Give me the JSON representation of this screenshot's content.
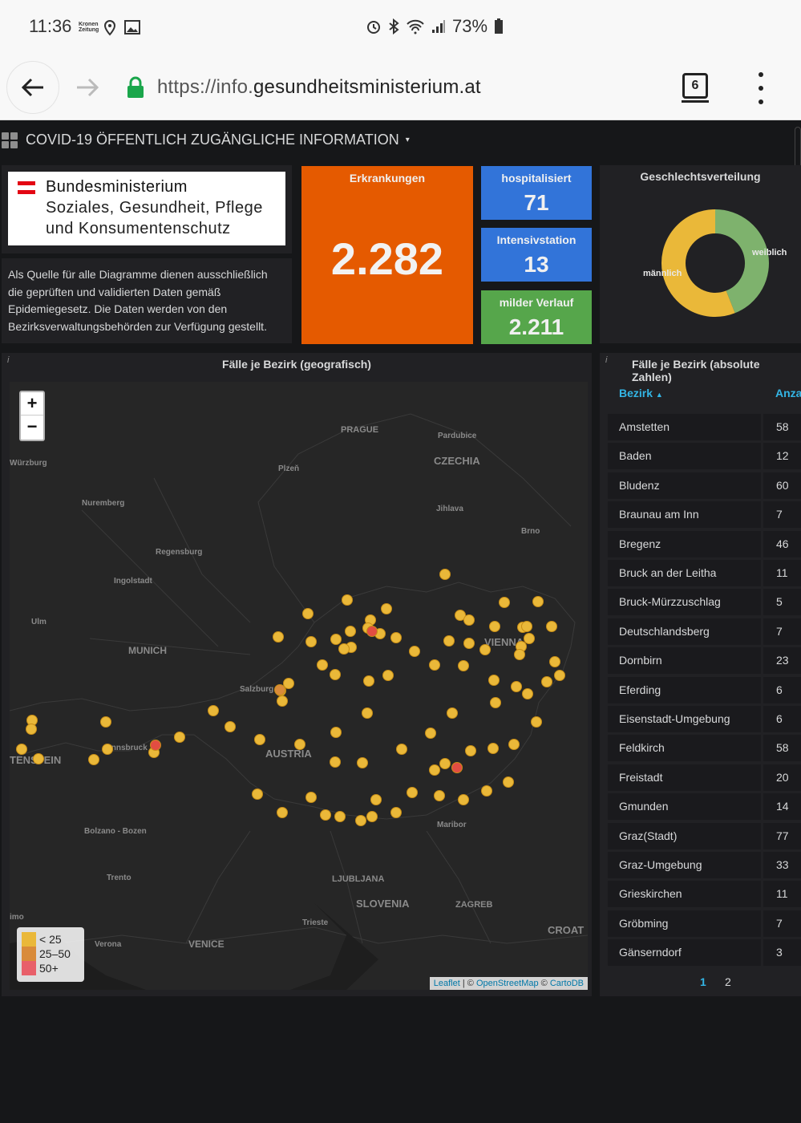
{
  "status_bar": {
    "time": "11:36",
    "notif_badge": "Kronen Zeitung",
    "battery": "73%"
  },
  "browser": {
    "url_prefix": "https://info.",
    "url_domain": "gesundheitsministerium.at",
    "tab_count": "6"
  },
  "dashboard": {
    "title": "COVID-19 ÖFFENTLICH ZUGÄNGLICHE INFORMATION"
  },
  "logo": {
    "line1": "Bundesministerium",
    "line2": "Soziales, Gesundheit, Pflege",
    "line3": "und Konsumentenschutz"
  },
  "description": "Als Quelle für alle Diagramme dienen ausschließlich die geprüften und validierten Daten gemäß Epidemiegesetz. Die Daten werden von den Bezirksverwaltungsbehörden zur Verfügung gestellt.",
  "stats": {
    "erkrankungen": {
      "label": "Erkrankungen",
      "value": "2.282",
      "color": "#e55a00"
    },
    "hospitalisiert": {
      "label": "hospitalisiert",
      "value": "71",
      "color": "#3274d9"
    },
    "intensivstation": {
      "label": "Intensivstation",
      "value": "13",
      "color": "#3274d9"
    },
    "mild": {
      "label": "milder Verlauf",
      "value": "2.211",
      "color": "#56a64b"
    }
  },
  "gender_chart": {
    "title": "Geschlechtsverteilung",
    "segments": [
      {
        "label": "männlich",
        "fraction": 0.56,
        "color": "#eab839"
      },
      {
        "label": "weiblich",
        "fraction": 0.44,
        "color": "#7eb26d"
      }
    ]
  },
  "map_panel": {
    "title": "Fälle je Bezirk (geografisch)",
    "zoom_in": "+",
    "zoom_out": "−",
    "cities": [
      "PRAGUE",
      "Pardubice",
      "CZECHIA",
      "Plzeň",
      "Jihlava",
      "Würzburg",
      "Nuremberg",
      "Brno",
      "Regensburg",
      "Ingolstadt",
      "Ulm",
      "MUNICH",
      "VIENNA",
      "Salzburg",
      "Innsbruck",
      "AUSTRIA",
      "TENSTEIN",
      "Bolzano - Bozen",
      "Maribor",
      "Trento",
      "LJUBLJANA",
      "SLOVENIA",
      "ZAGREB",
      "Trieste",
      "Verona",
      "VENICE",
      "CROAT",
      "imo"
    ],
    "legend": [
      {
        "label": "< 25",
        "color": "#eab839"
      },
      {
        "label": "25–50",
        "color": "#d98b3a"
      },
      {
        "label": "50+",
        "color": "#e8606a"
      }
    ],
    "attribution": {
      "leaflet": "Leaflet",
      "sep1": " | © ",
      "osm": "OpenStreetMap",
      "sep2": " © ",
      "carto": "CartoDB"
    }
  },
  "table_panel": {
    "title": "Fälle je Bezirk (absolute Zahlen)",
    "col_name": "Bezirk",
    "col_value": "Anza",
    "rows": [
      {
        "name": "Amstetten",
        "value": "58"
      },
      {
        "name": "Baden",
        "value": "12"
      },
      {
        "name": "Bludenz",
        "value": "60"
      },
      {
        "name": "Braunau am Inn",
        "value": "7"
      },
      {
        "name": "Bregenz",
        "value": "46"
      },
      {
        "name": "Bruck an der Leitha",
        "value": "11"
      },
      {
        "name": "Bruck-Mürzzuschlag",
        "value": "5"
      },
      {
        "name": "Deutschlandsberg",
        "value": "7"
      },
      {
        "name": "Dornbirn",
        "value": "23"
      },
      {
        "name": "Eferding",
        "value": "6"
      },
      {
        "name": "Eisenstadt-Umgebung",
        "value": "6"
      },
      {
        "name": "Feldkirch",
        "value": "58"
      },
      {
        "name": "Freistadt",
        "value": "20"
      },
      {
        "name": "Gmunden",
        "value": "14"
      },
      {
        "name": "Graz(Stadt)",
        "value": "77"
      },
      {
        "name": "Graz-Umgebung",
        "value": "33"
      },
      {
        "name": "Grieskirchen",
        "value": "11"
      },
      {
        "name": "Gröbming",
        "value": "7"
      },
      {
        "name": "Gänserndorf",
        "value": "3"
      }
    ],
    "pages": [
      "1",
      "2"
    ]
  }
}
